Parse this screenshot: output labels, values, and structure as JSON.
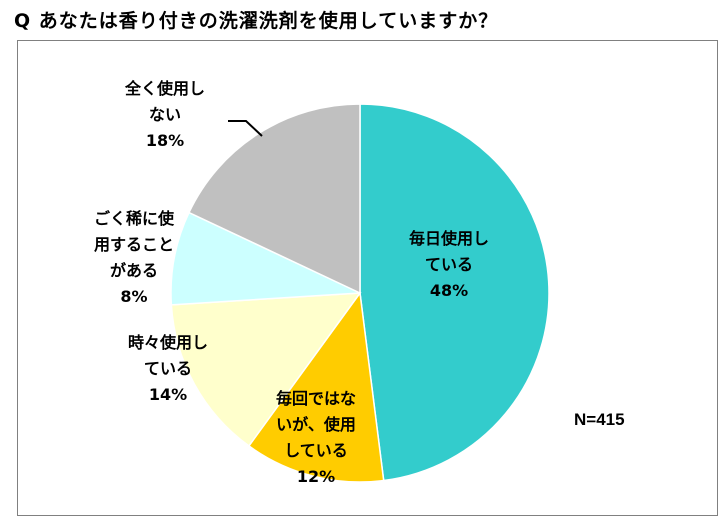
{
  "title": "Q あなたは香り付きの洗濯洗剤を使用していますか？",
  "sample_note": "N=415",
  "colors": {
    "daily": "#33cccc",
    "not_every_time": "#ffcc00",
    "sometimes": "#ffffcc",
    "rarely": "#ccffff",
    "never": "#c0c0c0",
    "outline": "#ffffff",
    "frame": "#808080"
  },
  "chart_data": {
    "type": "pie",
    "title": "Q あなたは香り付きの洗濯洗剤を使用していますか？",
    "start": "12 o'clock, clockwise",
    "slices": [
      {
        "label": "毎日使用している",
        "label_lines": [
          "毎日使用し",
          "ている",
          "48%"
        ],
        "value": 48,
        "pct_text": "48%",
        "color": "#33cccc"
      },
      {
        "label": "毎回ではないが、使用している",
        "label_lines": [
          "毎回ではな",
          "いが、使用",
          "している",
          "12%"
        ],
        "value": 12,
        "pct_text": "12%",
        "color": "#ffcc00"
      },
      {
        "label": "時々使用している",
        "label_lines": [
          "時々使用し",
          "ている",
          "14%"
        ],
        "value": 14,
        "pct_text": "14%",
        "color": "#ffffcc"
      },
      {
        "label": "ごく稀に使用することがある",
        "label_lines": [
          "ごく稀に使",
          "用すること",
          "がある",
          "8%"
        ],
        "value": 8,
        "pct_text": "8%",
        "color": "#ccffff"
      },
      {
        "label": "全く使用しない",
        "label_lines": [
          "全く使用し",
          "ない",
          "18%"
        ],
        "value": 18,
        "pct_text": "18%",
        "color": "#c0c0c0"
      }
    ],
    "annotations": [
      "N=415"
    ]
  }
}
